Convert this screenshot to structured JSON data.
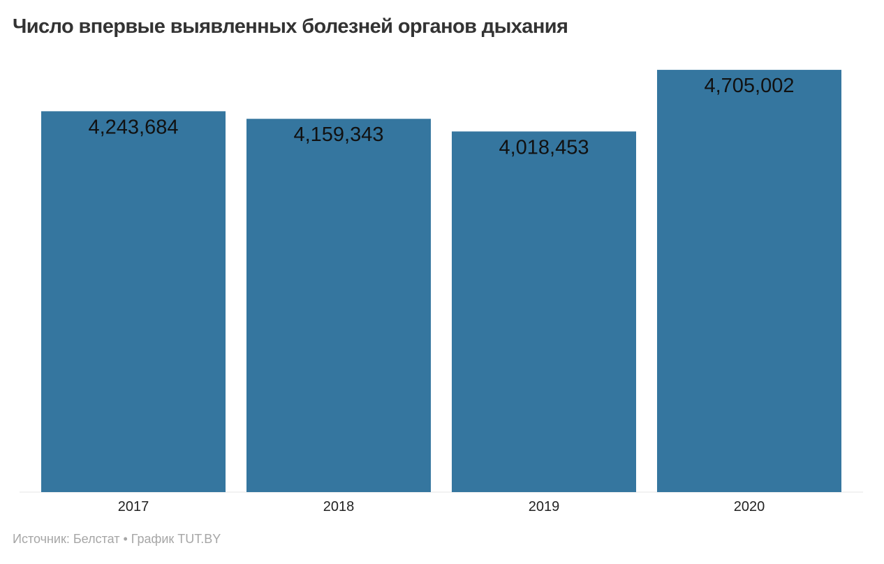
{
  "chart_data": {
    "type": "bar",
    "title": "Число впервые выявленных болезней органов дыхания",
    "categories": [
      "2017",
      "2018",
      "2019",
      "2020"
    ],
    "values": [
      4243684,
      4159343,
      4018453,
      4705002
    ],
    "value_labels": [
      "4,243,684",
      "4,159,343",
      "4,018,453",
      "4,705,002"
    ],
    "xlabel": "",
    "ylabel": "",
    "ylim": [
      0,
      4900000
    ],
    "grid": false,
    "legend": "none",
    "bar_color": "#35769f",
    "source": "Источник: Белстат • График TUT.BY"
  }
}
